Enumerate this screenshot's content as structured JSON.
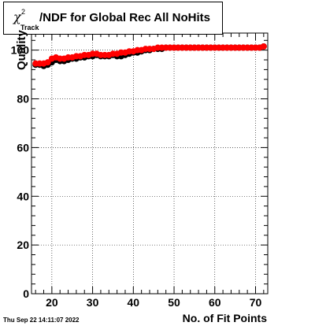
{
  "title": {
    "symbol": "χ",
    "superscript": "2",
    "subscript": "Track",
    "text": "/NDF for Global Rec All NoHits"
  },
  "timestamp": "Thu Sep 22 14:11:07 2022",
  "chart_data": {
    "type": "scatter",
    "title": "χ2Track/NDF for Global Rec All NoHits",
    "xlabel": "No. of Fit Points",
    "ylabel": "Quality",
    "xlim": [
      15,
      73
    ],
    "ylim": [
      0,
      107
    ],
    "x_ticks": [
      20,
      30,
      40,
      50,
      60,
      70
    ],
    "y_ticks": [
      0,
      20,
      40,
      60,
      80,
      100
    ],
    "grid": true,
    "colors": {
      "series_a": "#000000",
      "series_b": "#ff0000"
    },
    "series": [
      {
        "color": "#000000",
        "x": [
          16,
          17,
          18,
          19,
          20,
          21,
          22,
          23,
          24,
          25,
          26,
          27,
          28,
          29,
          30,
          31,
          32,
          33,
          34,
          35,
          36,
          37,
          38,
          39,
          40,
          41,
          42,
          43,
          44,
          45,
          46,
          47,
          48,
          49,
          50,
          51,
          52,
          53,
          54,
          55,
          56,
          57,
          58,
          59,
          60,
          61,
          62,
          63,
          64,
          65,
          66,
          67,
          68,
          69,
          70,
          71,
          72
        ],
        "y": [
          94,
          94,
          93.5,
          94,
          95,
          96,
          95.5,
          95.5,
          96,
          96.5,
          96.5,
          97,
          97,
          97.5,
          97.5,
          98,
          97.5,
          97.5,
          97.5,
          98,
          97.5,
          97.5,
          98,
          98.5,
          99,
          99,
          99.5,
          100,
          100,
          100.5,
          100.5,
          100.5,
          101,
          101,
          101,
          101,
          101,
          101,
          101,
          101,
          101,
          101,
          101,
          101,
          101,
          101,
          101,
          101,
          101,
          101,
          101,
          101,
          101,
          101,
          101,
          101,
          101.5
        ]
      },
      {
        "color": "#ff0000",
        "x": [
          16,
          17,
          18,
          19,
          20,
          21,
          22,
          23,
          24,
          25,
          26,
          27,
          28,
          29,
          30,
          31,
          32,
          33,
          34,
          35,
          36,
          37,
          38,
          39,
          40,
          41,
          42,
          43,
          44,
          45,
          46,
          47,
          48,
          49,
          50,
          51,
          52,
          53,
          54,
          55,
          56,
          57,
          58,
          59,
          60,
          61,
          62,
          63,
          64,
          65,
          66,
          67,
          68,
          69,
          70,
          71,
          72
        ],
        "y": [
          94.5,
          94.5,
          94.5,
          95,
          96.5,
          97,
          96.5,
          96.5,
          97,
          97,
          97.5,
          97.5,
          98,
          98,
          98.5,
          98.5,
          98,
          98,
          98,
          98.5,
          98.5,
          99,
          99,
          99.5,
          99.5,
          100,
          100,
          100.5,
          100.5,
          100.5,
          101,
          101,
          101,
          101,
          101,
          101,
          101,
          101,
          101,
          101,
          101,
          101,
          101,
          101,
          101,
          101,
          101,
          101,
          101,
          101,
          101,
          101,
          101,
          101,
          101,
          101,
          101.5
        ]
      }
    ]
  }
}
